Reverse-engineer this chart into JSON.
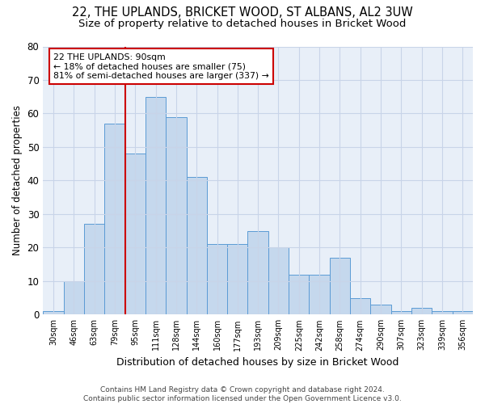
{
  "title1": "22, THE UPLANDS, BRICKET WOOD, ST ALBANS, AL2 3UW",
  "title2": "Size of property relative to detached houses in Bricket Wood",
  "xlabel": "Distribution of detached houses by size in Bricket Wood",
  "ylabel": "Number of detached properties",
  "bar_values": [
    1,
    10,
    27,
    57,
    48,
    65,
    59,
    41,
    21,
    21,
    25,
    20,
    12,
    12,
    17,
    5,
    3,
    1,
    2,
    1,
    1
  ],
  "bin_labels": [
    "30sqm",
    "46sqm",
    "63sqm",
    "79sqm",
    "95sqm",
    "111sqm",
    "128sqm",
    "144sqm",
    "160sqm",
    "177sqm",
    "193sqm",
    "209sqm",
    "225sqm",
    "242sqm",
    "258sqm",
    "274sqm",
    "290sqm",
    "307sqm",
    "323sqm",
    "339sqm",
    "356sqm"
  ],
  "bar_color": "#c5d8ed",
  "bar_edge_color": "#5b9bd5",
  "grid_color": "#c8d4e8",
  "background_color": "#e8eff8",
  "vline_color": "#cc0000",
  "annotation_text": "22 THE UPLANDS: 90sqm\n← 18% of detached houses are smaller (75)\n81% of semi-detached houses are larger (337) →",
  "annotation_box_color": "white",
  "annotation_box_edge": "#cc0000",
  "ylim": [
    0,
    80
  ],
  "yticks": [
    0,
    10,
    20,
    30,
    40,
    50,
    60,
    70,
    80
  ],
  "footer_text": "Contains HM Land Registry data © Crown copyright and database right 2024.\nContains public sector information licensed under the Open Government Licence v3.0.",
  "title1_fontsize": 10.5,
  "title2_fontsize": 9.5,
  "xlabel_fontsize": 9,
  "ylabel_fontsize": 8.5
}
